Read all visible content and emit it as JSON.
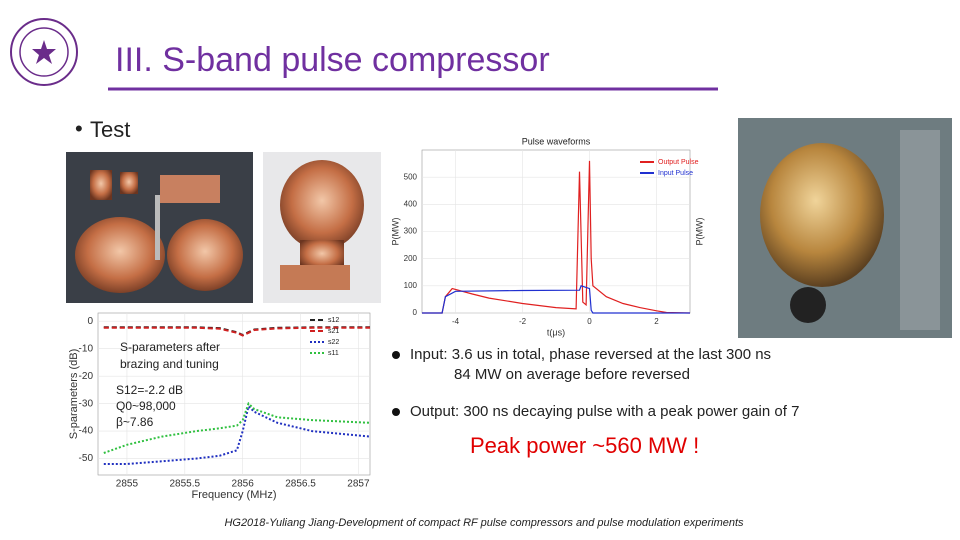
{
  "header": {
    "title": "III. S-band pulse compressor"
  },
  "bullets": [
    "Test"
  ],
  "chart_data": [
    {
      "type": "line",
      "title": "Pulse waveforms",
      "x_label": "t(μs)",
      "y_label": "P(MW)",
      "y2_label": "P(MW)",
      "xlim": [
        -5,
        3
      ],
      "xticks": [
        -4,
        -2,
        0,
        2
      ],
      "ylim": [
        0,
        600
      ],
      "yticks": [
        0,
        100,
        200,
        300,
        400,
        500
      ],
      "series": [
        {
          "name": "Output Pulse",
          "color": "#e02020",
          "style": "solid",
          "x": [
            -5,
            -4.4,
            -4.3,
            -4.1,
            -3.5,
            -3,
            -2,
            -1,
            -0.4,
            -0.3,
            -0.2,
            -0.1,
            0,
            0.05,
            0.1,
            0.5,
            1,
            1.5,
            2,
            2.3,
            3
          ],
          "values": [
            0,
            0,
            60,
            90,
            70,
            55,
            35,
            20,
            15,
            520,
            40,
            30,
            560,
            200,
            100,
            60,
            35,
            20,
            8,
            2,
            0
          ]
        },
        {
          "name": "Input Pulse",
          "color": "#2030d0",
          "style": "solid",
          "x": [
            -5,
            -4.4,
            -4.3,
            -4,
            -2,
            -0.3,
            -0.25,
            0,
            0.05,
            0.1,
            3
          ],
          "values": [
            0,
            0,
            60,
            80,
            83,
            84,
            100,
            90,
            10,
            0,
            0
          ]
        }
      ]
    },
    {
      "type": "line",
      "x_label": "Frequency (MHz)",
      "y_label": "S-parameters (dB)",
      "xlim": [
        2854.75,
        2857.1
      ],
      "xticks": [
        2855,
        2855.5,
        2856,
        2856.5,
        2857
      ],
      "ylim": [
        -56,
        3
      ],
      "yticks": [
        0,
        -10,
        -20,
        -30,
        -40,
        -50
      ],
      "x": [
        2854.8,
        2855,
        2855.3,
        2855.6,
        2855.8,
        2855.95,
        2856.0,
        2856.05,
        2856.1,
        2856.3,
        2856.6,
        2857.1
      ],
      "annotations": [
        "S-parameters after",
        "brazing and tuning",
        "S12=-2.2 dB",
        "Q0~98,000",
        "β~7.86"
      ],
      "series": [
        {
          "name": "s12",
          "color": "#222222",
          "style": "dashed",
          "values": [
            -2.2,
            -2.2,
            -2.2,
            -2.2,
            -2.5,
            -4,
            -5,
            -4,
            -3,
            -2.4,
            -2.2,
            -2.2
          ]
        },
        {
          "name": "s21",
          "color": "#d02020",
          "style": "dashed",
          "values": [
            -2.4,
            -2.4,
            -2.4,
            -2.4,
            -2.7,
            -4.2,
            -5.2,
            -4.2,
            -3.2,
            -2.6,
            -2.4,
            -2.4
          ]
        },
        {
          "name": "s22",
          "color": "#2030c0",
          "style": "dotted",
          "values": [
            -52,
            -52,
            -51,
            -50,
            -49,
            -47,
            -40,
            -31,
            -33,
            -37,
            -40,
            -42
          ]
        },
        {
          "name": "s11",
          "color": "#30c040",
          "style": "dotted",
          "values": [
            -48,
            -45,
            -42,
            -40,
            -39,
            -38,
            -36,
            -30,
            -32,
            -35,
            -36,
            -37
          ]
        }
      ]
    }
  ],
  "notes": {
    "input": [
      "Input: 3.6 us in total, phase reversed at the last 300 ns",
      "84 MW on average before reversed"
    ],
    "output": "Output: 300 ns decaying pulse with a peak power gain of 7",
    "peak": "Peak power ~560 MW !"
  },
  "footer": "HG2018-Yuliang Jiang-Development of compact RF pulse compressors and pulse modulation experiments"
}
